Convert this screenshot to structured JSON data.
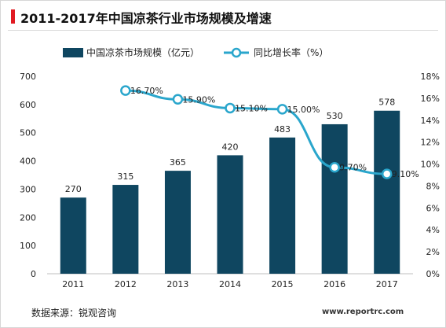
{
  "title": "2011-2017年中国凉茶行业市场规模及增速",
  "source": "数据来源：锐观咨询",
  "watermark": "www.reportrc.com",
  "colors": {
    "bar": "#0f4660",
    "line": "#2aa6cc",
    "accent": "#e11a22"
  },
  "chart_data": {
    "type": "bar",
    "categories": [
      "2011",
      "2012",
      "2013",
      "2014",
      "2015",
      "2016",
      "2017"
    ],
    "series": [
      {
        "name": "中国凉茶市场规模（亿元）",
        "type": "bar",
        "axis": "left",
        "values": [
          270,
          315,
          365,
          420,
          483,
          530,
          578
        ],
        "labels": [
          "270",
          "315",
          "365",
          "420",
          "483",
          "530",
          "578"
        ]
      },
      {
        "name": "同比增长率（%）",
        "type": "line",
        "axis": "right",
        "values": [
          null,
          16.7,
          15.9,
          15.1,
          15.0,
          9.7,
          9.1
        ],
        "labels": [
          "",
          "16.70%",
          "15.90%",
          "15.10%",
          "15.00%",
          "9.70%",
          "9.10%"
        ]
      }
    ],
    "ylim": [
      0,
      700
    ],
    "yticks": [
      0,
      100,
      200,
      300,
      400,
      500,
      600,
      700
    ],
    "y2lim": [
      0,
      18
    ],
    "y2ticks": [
      "0%",
      "2%",
      "4%",
      "6%",
      "8%",
      "10%",
      "12%",
      "14%",
      "16%",
      "18%"
    ],
    "xlabel": "",
    "ylabel": "",
    "legend_position": "top"
  }
}
